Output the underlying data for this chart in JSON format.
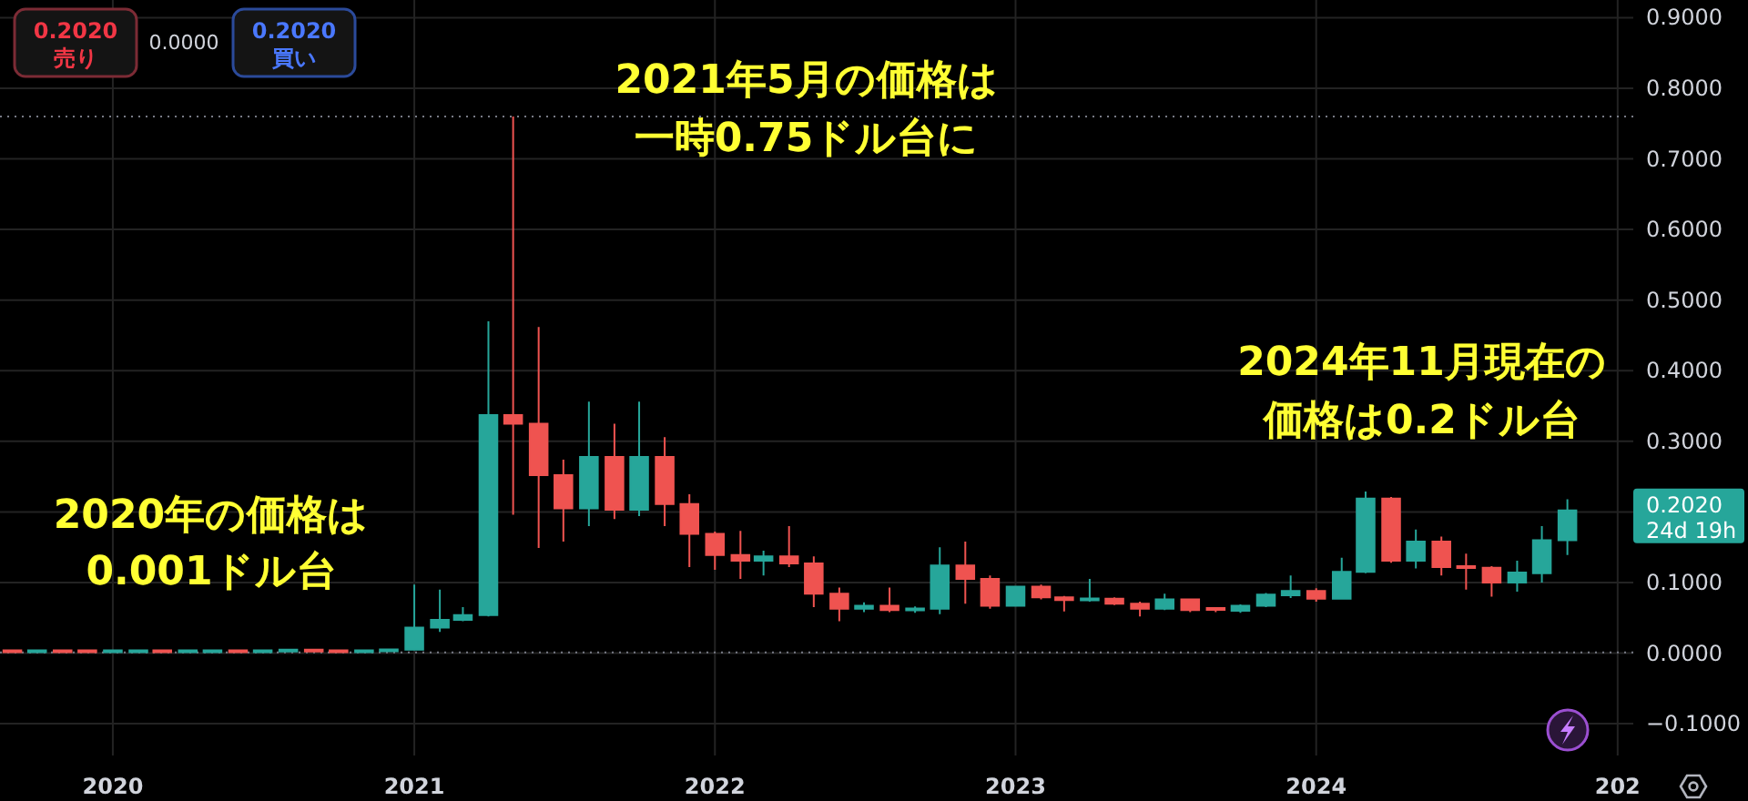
{
  "chart_data": {
    "type": "candlestick",
    "x": [
      "2019-09",
      "2019-10",
      "2019-11",
      "2019-12",
      "2020-01",
      "2020-02",
      "2020-03",
      "2020-04",
      "2020-05",
      "2020-06",
      "2020-07",
      "2020-08",
      "2020-09",
      "2020-10",
      "2020-11",
      "2020-12",
      "2021-01",
      "2021-02",
      "2021-03",
      "2021-04",
      "2021-05",
      "2021-06",
      "2021-07",
      "2021-08",
      "2021-09",
      "2021-10",
      "2021-11",
      "2021-12",
      "2022-01",
      "2022-02",
      "2022-03",
      "2022-04",
      "2022-05",
      "2022-06",
      "2022-07",
      "2022-08",
      "2022-09",
      "2022-10",
      "2022-11",
      "2022-12",
      "2023-01",
      "2023-02",
      "2023-03",
      "2023-04",
      "2023-05",
      "2023-06",
      "2023-07",
      "2023-08",
      "2023-09",
      "2023-10",
      "2023-11",
      "2023-12",
      "2024-01",
      "2024-02",
      "2024-03",
      "2024-04",
      "2024-05",
      "2024-06",
      "2024-07",
      "2024-08",
      "2024-09",
      "2024-10",
      "2024-11"
    ],
    "ohlc": [
      [
        0.003,
        0.003,
        0.002,
        0.002
      ],
      [
        0.002,
        0.003,
        0.002,
        0.003
      ],
      [
        0.003,
        0.003,
        0.002,
        0.002
      ],
      [
        0.003,
        0.003,
        0.002,
        0.002
      ],
      [
        0.002,
        0.003,
        0.002,
        0.003
      ],
      [
        0.002,
        0.003,
        0.002,
        0.003
      ],
      [
        0.003,
        0.003,
        0.001,
        0.002
      ],
      [
        0.002,
        0.003,
        0.002,
        0.003
      ],
      [
        0.002,
        0.003,
        0.002,
        0.003
      ],
      [
        0.003,
        0.003,
        0.002,
        0.002
      ],
      [
        0.002,
        0.004,
        0.002,
        0.003
      ],
      [
        0.003,
        0.004,
        0.003,
        0.004
      ],
      [
        0.004,
        0.004,
        0.002,
        0.003
      ],
      [
        0.003,
        0.003,
        0.002,
        0.002
      ],
      [
        0.002,
        0.004,
        0.002,
        0.003
      ],
      [
        0.003,
        0.006,
        0.003,
        0.005
      ],
      [
        0.005,
        0.097,
        0.005,
        0.036
      ],
      [
        0.036,
        0.09,
        0.03,
        0.047
      ],
      [
        0.047,
        0.065,
        0.045,
        0.054
      ],
      [
        0.054,
        0.47,
        0.052,
        0.337
      ],
      [
        0.337,
        0.76,
        0.196,
        0.325
      ],
      [
        0.325,
        0.462,
        0.149,
        0.252
      ],
      [
        0.252,
        0.274,
        0.158,
        0.205
      ],
      [
        0.205,
        0.356,
        0.18,
        0.278
      ],
      [
        0.278,
        0.325,
        0.19,
        0.203
      ],
      [
        0.203,
        0.356,
        0.194,
        0.278
      ],
      [
        0.278,
        0.306,
        0.18,
        0.211
      ],
      [
        0.211,
        0.225,
        0.122,
        0.169
      ],
      [
        0.169,
        0.172,
        0.118,
        0.139
      ],
      [
        0.139,
        0.173,
        0.105,
        0.131
      ],
      [
        0.131,
        0.145,
        0.11,
        0.137
      ],
      [
        0.137,
        0.18,
        0.122,
        0.127
      ],
      [
        0.127,
        0.137,
        0.065,
        0.084
      ],
      [
        0.084,
        0.093,
        0.045,
        0.063
      ],
      [
        0.063,
        0.072,
        0.058,
        0.067
      ],
      [
        0.067,
        0.093,
        0.058,
        0.061
      ],
      [
        0.061,
        0.066,
        0.057,
        0.063
      ],
      [
        0.063,
        0.15,
        0.055,
        0.124
      ],
      [
        0.124,
        0.158,
        0.07,
        0.105
      ],
      [
        0.105,
        0.11,
        0.063,
        0.067
      ],
      [
        0.067,
        0.095,
        0.066,
        0.094
      ],
      [
        0.094,
        0.097,
        0.076,
        0.079
      ],
      [
        0.079,
        0.081,
        0.059,
        0.075
      ],
      [
        0.075,
        0.105,
        0.073,
        0.077
      ],
      [
        0.077,
        0.079,
        0.068,
        0.07
      ],
      [
        0.07,
        0.073,
        0.052,
        0.063
      ],
      [
        0.063,
        0.084,
        0.061,
        0.076
      ],
      [
        0.076,
        0.077,
        0.058,
        0.061
      ],
      [
        0.063,
        0.064,
        0.058,
        0.062
      ],
      [
        0.06,
        0.069,
        0.057,
        0.067
      ],
      [
        0.067,
        0.085,
        0.065,
        0.083
      ],
      [
        0.082,
        0.11,
        0.078,
        0.088
      ],
      [
        0.088,
        0.092,
        0.073,
        0.077
      ],
      [
        0.077,
        0.135,
        0.076,
        0.115
      ],
      [
        0.115,
        0.229,
        0.113,
        0.219
      ],
      [
        0.219,
        0.221,
        0.128,
        0.131
      ],
      [
        0.131,
        0.175,
        0.12,
        0.158
      ],
      [
        0.158,
        0.165,
        0.11,
        0.122
      ],
      [
        0.123,
        0.141,
        0.09,
        0.121
      ],
      [
        0.121,
        0.123,
        0.08,
        0.1
      ],
      [
        0.1,
        0.131,
        0.087,
        0.114
      ],
      [
        0.113,
        0.18,
        0.1,
        0.16
      ],
      [
        0.16,
        0.218,
        0.139,
        0.202
      ]
    ],
    "colors": [
      "#ef5350",
      "#26a69a",
      "#ef5350",
      "#ef5350",
      "#26a69a",
      "#26a69a",
      "#ef5350",
      "#26a69a",
      "#26a69a",
      "#ef5350",
      "#26a69a",
      "#26a69a",
      "#ef5350",
      "#ef5350",
      "#26a69a",
      "#26a69a",
      "#26a69a",
      "#26a69a",
      "#26a69a",
      "#26a69a",
      "#ef5350",
      "#ef5350",
      "#ef5350",
      "#26a69a",
      "#ef5350",
      "#26a69a",
      "#ef5350",
      "#ef5350",
      "#ef5350",
      "#ef5350",
      "#26a69a",
      "#ef5350",
      "#ef5350",
      "#ef5350",
      "#26a69a",
      "#ef5350",
      "#26a69a",
      "#26a69a",
      "#ef5350",
      "#ef5350",
      "#26a69a",
      "#ef5350",
      "#ef5350",
      "#26a69a",
      "#ef5350",
      "#ef5350",
      "#26a69a",
      "#ef5350",
      "#ef5350",
      "#26a69a",
      "#26a69a",
      "#26a69a",
      "#ef5350",
      "#26a69a",
      "#26a69a",
      "#ef5350",
      "#26a69a",
      "#ef5350",
      "#ef5350",
      "#ef5350",
      "#26a69a",
      "#26a69a",
      "#26a69a"
    ],
    "xlim": [
      "2019-08-17",
      "2025-01-20"
    ],
    "xticks": [
      "2020",
      "2021",
      "2022",
      "2023",
      "2024",
      {
        "value": "2025",
        "label": "202"
      }
    ],
    "ylim": [
      -0.145,
      0.925
    ],
    "yticks": [
      {
        "value": -0.1,
        "label": "−0.1000"
      },
      {
        "value": 0,
        "label": "0.0000"
      },
      {
        "value": 0.1,
        "label": "0.1000"
      },
      {
        "value": 0.2,
        "label": null
      },
      {
        "value": 0.3,
        "label": "0.3000"
      },
      {
        "value": 0.4,
        "label": "0.4000"
      },
      {
        "value": 0.5,
        "label": "0.5000"
      },
      {
        "value": 0.6,
        "label": "0.6000"
      },
      {
        "value": 0.7,
        "label": "0.7000"
      },
      {
        "value": 0.8,
        "label": "0.8000"
      },
      {
        "value": 0.9,
        "label": "0.9000"
      }
    ],
    "grid": true,
    "ref_lines": [
      {
        "axis": "y",
        "value": 0.76,
        "color": "#787b86",
        "line_style": "dotted"
      },
      {
        "axis": "y",
        "value": 0.001,
        "color": "#787b86",
        "line_style": "dotted"
      }
    ],
    "annotations": [
      "2021年5月の価格は一時0.75ドル台に",
      "2020年の価格は0.001ドル台",
      "2024年11月現在の価格は0.2ドル台",
      "0.2020\n売り",
      "0.0000",
      "0.2020\n買い",
      "0.2020\n24d 19h"
    ]
  }
}
